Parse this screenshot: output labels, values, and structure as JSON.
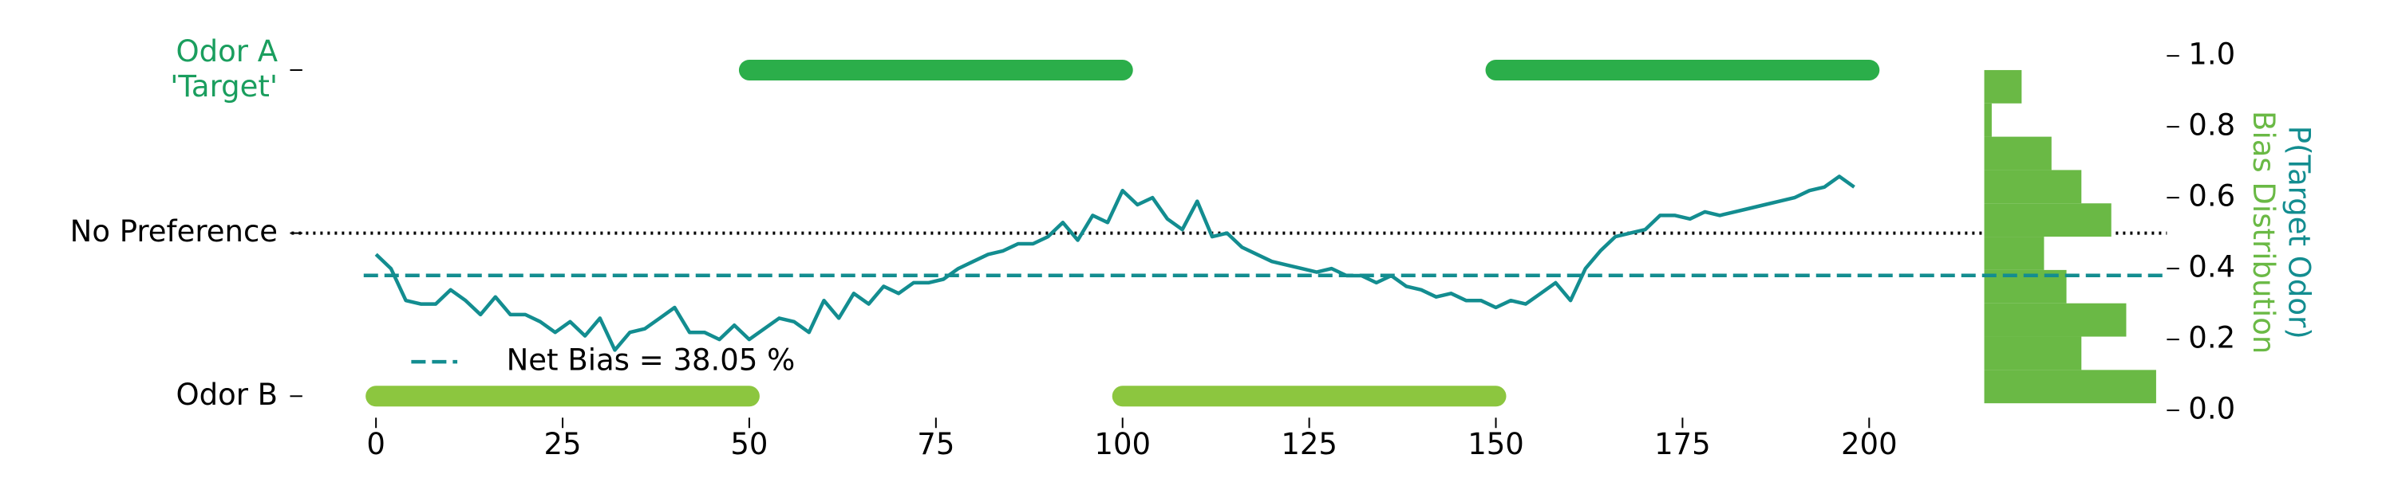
{
  "chart_data": {
    "type": "line",
    "xlim": [
      0,
      200
    ],
    "xticks": [
      0,
      25,
      50,
      75,
      100,
      125,
      150,
      175,
      200
    ],
    "ylim": [
      0,
      1
    ],
    "yticks": [
      {
        "value": 0,
        "label": "0.0"
      },
      0.2,
      0.4,
      0.6,
      0.8,
      {
        "value": 1,
        "label": "1.0"
      }
    ],
    "y_label": "P(Target Odor)",
    "y_label_color": "#138d90",
    "left_ticks": [
      {
        "value": 0.96,
        "label": "Odor A\n'Target'",
        "color": "#1a9e5e"
      },
      {
        "value": 0.5,
        "label": "No Preference",
        "color": "#000000"
      },
      {
        "value": 0.04,
        "label": "Odor B",
        "color": "#000000"
      }
    ],
    "no_preference_line": {
      "tick": 1,
      "style": "dotted",
      "color": "#000000"
    },
    "x": [
      0,
      2,
      4,
      6,
      8,
      10,
      12,
      14,
      16,
      18,
      20,
      22,
      24,
      26,
      28,
      30,
      32,
      34,
      36,
      38,
      40,
      42,
      44,
      46,
      48,
      50,
      52,
      54,
      56,
      58,
      60,
      62,
      64,
      66,
      68,
      70,
      72,
      74,
      76,
      78,
      80,
      82,
      84,
      86,
      88,
      90,
      92,
      94,
      96,
      98,
      100,
      102,
      104,
      106,
      108,
      110,
      112,
      114,
      116,
      118,
      120,
      122,
      124,
      126,
      128,
      130,
      132,
      134,
      136,
      138,
      140,
      142,
      144,
      146,
      148,
      150,
      152,
      154,
      156,
      158,
      160,
      162,
      164,
      166,
      168,
      170,
      172,
      174,
      176,
      178,
      180,
      182,
      184,
      186,
      188,
      190,
      192,
      194,
      196,
      198
    ],
    "series": [
      {
        "color": "#138d90",
        "values": [
          0.44,
          0.4,
          0.31,
          0.3,
          0.3,
          0.34,
          0.31,
          0.27,
          0.32,
          0.27,
          0.27,
          0.25,
          0.22,
          0.25,
          0.21,
          0.26,
          0.17,
          0.22,
          0.23,
          0.26,
          0.29,
          0.22,
          0.22,
          0.2,
          0.24,
          0.2,
          0.23,
          0.26,
          0.25,
          0.22,
          0.31,
          0.26,
          0.33,
          0.3,
          0.35,
          0.33,
          0.36,
          0.36,
          0.37,
          0.4,
          0.42,
          0.44,
          0.45,
          0.47,
          0.47,
          0.49,
          0.53,
          0.48,
          0.55,
          0.53,
          0.62,
          0.58,
          0.6,
          0.54,
          0.51,
          0.59,
          0.49,
          0.5,
          0.46,
          0.44,
          0.42,
          0.41,
          0.4,
          0.39,
          0.4,
          0.38,
          0.38,
          0.36,
          0.38,
          0.35,
          0.34,
          0.32,
          0.33,
          0.31,
          0.31,
          0.29,
          0.31,
          0.3,
          0.33,
          0.36,
          0.31,
          0.4,
          0.45,
          0.49,
          0.5,
          0.51,
          0.55,
          0.55,
          0.54,
          0.56,
          0.55,
          0.56,
          0.57,
          0.58,
          0.59,
          0.6,
          0.62,
          0.63,
          0.66,
          0.63
        ]
      }
    ],
    "odor_segments": [
      {
        "x": [
          50,
          100
        ],
        "y": 0.96,
        "color": "#2bae4a"
      },
      {
        "x": [
          150,
          200
        ],
        "y": 0.96,
        "color": "#2bae4a"
      },
      {
        "x": [
          0,
          50
        ],
        "y": 0.04,
        "color": "#8cc63f"
      },
      {
        "x": [
          100,
          150
        ],
        "y": 0.04,
        "color": "#8cc63f"
      }
    ],
    "net_bias": {
      "value": 0.3805,
      "label": "Net Bias = 38.05 %",
      "color": "#138d90"
    },
    "histogram": {
      "label": "Bias Distribution",
      "color": "#6ab945",
      "bins": [
        0.02,
        0.114,
        0.208,
        0.302,
        0.396,
        0.49,
        0.584,
        0.678,
        0.772,
        0.866,
        0.96
      ],
      "counts": [
        23,
        13,
        19,
        11,
        8,
        17,
        13,
        9,
        1,
        5
      ],
      "xlim": [
        0,
        23
      ]
    }
  }
}
